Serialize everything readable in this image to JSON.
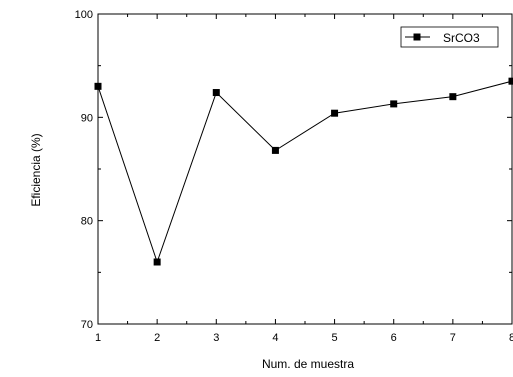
{
  "chart_data": {
    "type": "line",
    "xlabel": "Num. de muestra",
    "ylabel": "Eficiencia (%)",
    "xlim": [
      1,
      8
    ],
    "ylim": [
      70,
      100
    ],
    "xticks": [
      "1",
      "2",
      "3",
      "4",
      "5",
      "6",
      "7",
      "8"
    ],
    "yticks": [
      "70",
      "80",
      "90",
      "100"
    ],
    "grid": false,
    "legend_position": "top-right",
    "series": [
      {
        "name": "SrCO3",
        "color": "#000000",
        "marker": "square",
        "x": [
          1,
          2,
          3,
          4,
          5,
          6,
          7,
          8
        ],
        "y": [
          93.0,
          76.0,
          92.4,
          86.8,
          90.4,
          91.3,
          92.0,
          93.5
        ]
      }
    ]
  }
}
